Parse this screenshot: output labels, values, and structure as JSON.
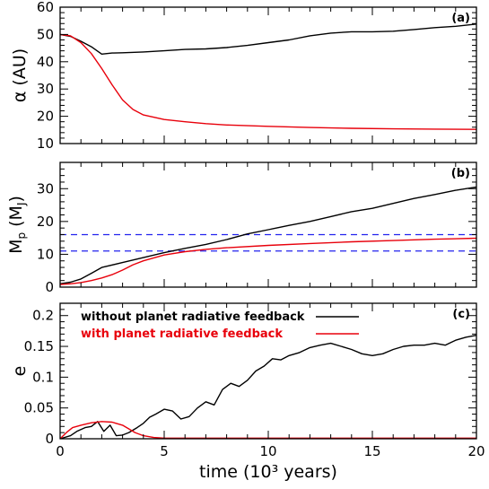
{
  "chart_data": {
    "type": "line",
    "x_label": "time (10³ years)",
    "x_range": [
      0,
      20
    ],
    "x_ticks": [
      0,
      5,
      10,
      15,
      20
    ],
    "legend_placement": "top-left of panel (c)",
    "legend": [
      {
        "label": "without planet radiative feedback",
        "color": "#000000"
      },
      {
        "label": "with planet radiative feedback",
        "color": "#e8000b"
      }
    ],
    "panels": [
      {
        "tag": "(a)",
        "y_label": "α (AU)",
        "y_range": [
          10,
          60
        ],
        "y_ticks": [
          10,
          20,
          30,
          40,
          50,
          60
        ],
        "series": [
          {
            "name": "without planet radiative feedback",
            "color": "#000000",
            "x": [
              0,
              0.5,
              1,
              1.5,
              2,
              2.5,
              3,
              4,
              5,
              6,
              7,
              8,
              9,
              10,
              11,
              12,
              13,
              14,
              15,
              16,
              17,
              18,
              19,
              20
            ],
            "y": [
              50,
              49.3,
              47.5,
              45.5,
              42.8,
              43.2,
              43.3,
              43.6,
              44.0,
              44.5,
              44.7,
              45.2,
              46.0,
              47.0,
              48.0,
              49.5,
              50.5,
              51.0,
              51.0,
              51.2,
              51.8,
              52.5,
              53.0,
              53.8
            ]
          },
          {
            "name": "with planet radiative feedback",
            "color": "#e8000b",
            "x": [
              0,
              0.5,
              1,
              1.5,
              2,
              2.5,
              3,
              3.5,
              4,
              5,
              6,
              7,
              8,
              10,
              12,
              14,
              16,
              18,
              20
            ],
            "y": [
              50,
              49.5,
              47.0,
              43.0,
              37.5,
              31.5,
              26.0,
              22.5,
              20.5,
              18.8,
              18.0,
              17.3,
              16.8,
              16.3,
              15.9,
              15.6,
              15.4,
              15.3,
              15.2
            ]
          }
        ]
      },
      {
        "tag": "(b)",
        "y_label": "Mp (MJ)",
        "y_range": [
          0,
          38
        ],
        "y_ticks": [
          0,
          10,
          20,
          30
        ],
        "hlines": [
          {
            "y": 16,
            "color": "#2222ee"
          },
          {
            "y": 11,
            "color": "#2222ee"
          }
        ],
        "series": [
          {
            "name": "without planet radiative feedback",
            "color": "#000000",
            "x": [
              0,
              0.5,
              1,
              1.5,
              2,
              3,
              4,
              5,
              6,
              7,
              8,
              9,
              10,
              11,
              12,
              13,
              14,
              15,
              16,
              17,
              18,
              19,
              20
            ],
            "y": [
              1,
              1.5,
              2.5,
              4.2,
              6.0,
              7.5,
              9.0,
              10.5,
              11.8,
              13.0,
              14.5,
              16.2,
              17.5,
              18.8,
              20.0,
              21.5,
              23.0,
              24.0,
              25.5,
              27.0,
              28.2,
              29.5,
              30.5
            ]
          },
          {
            "name": "with planet radiative feedback",
            "color": "#e8000b",
            "x": [
              0,
              0.5,
              1,
              1.5,
              2,
              2.5,
              3,
              3.5,
              4,
              5,
              6,
              7,
              8,
              10,
              12,
              14,
              16,
              18,
              20
            ],
            "y": [
              0.8,
              1.0,
              1.4,
              2.0,
              2.8,
              3.8,
              5.2,
              6.8,
              8.0,
              9.8,
              10.8,
              11.5,
              12.0,
              12.7,
              13.3,
              13.8,
              14.2,
              14.6,
              14.9
            ]
          }
        ]
      },
      {
        "tag": "(c)",
        "y_label": "e",
        "y_range": [
          0,
          0.22
        ],
        "y_ticks": [
          0,
          0.05,
          0.1,
          0.15,
          0.2
        ],
        "series": [
          {
            "name": "without planet radiative feedback",
            "color": "#000000",
            "x": [
              0,
              0.5,
              0.8,
              1.2,
              1.5,
              1.8,
              2.1,
              2.4,
              2.7,
              3.0,
              3.3,
              3.7,
              4.0,
              4.3,
              4.6,
              5.0,
              5.4,
              5.8,
              6.2,
              6.6,
              7.0,
              7.4,
              7.8,
              8.2,
              8.6,
              9.0,
              9.4,
              9.8,
              10.2,
              10.6,
              11.0,
              11.5,
              12.0,
              12.5,
              13.0,
              13.5,
              14.0,
              14.5,
              15.0,
              15.5,
              16.0,
              16.5,
              17.0,
              17.5,
              18.0,
              18.5,
              19.0,
              19.5,
              20.0
            ],
            "y": [
              0,
              0.005,
              0.012,
              0.018,
              0.02,
              0.028,
              0.012,
              0.022,
              0.005,
              0.006,
              0.01,
              0.018,
              0.025,
              0.035,
              0.04,
              0.048,
              0.045,
              0.032,
              0.036,
              0.05,
              0.06,
              0.055,
              0.08,
              0.09,
              0.085,
              0.095,
              0.11,
              0.118,
              0.13,
              0.128,
              0.135,
              0.14,
              0.148,
              0.152,
              0.155,
              0.15,
              0.145,
              0.138,
              0.135,
              0.138,
              0.145,
              0.15,
              0.152,
              0.152,
              0.155,
              0.152,
              0.16,
              0.165,
              0.168
            ]
          },
          {
            "name": "with planet radiative feedback",
            "color": "#e8000b",
            "x": [
              0,
              0.3,
              0.6,
              1.0,
              1.5,
              2.0,
              2.5,
              3.0,
              3.3,
              3.6,
              4.0,
              4.5,
              5,
              6,
              8,
              10,
              12,
              14,
              16,
              18,
              20
            ],
            "y": [
              0,
              0.01,
              0.018,
              0.022,
              0.026,
              0.028,
              0.027,
              0.022,
              0.016,
              0.01,
              0.005,
              0.002,
              0.001,
              0.001,
              0.001,
              0.001,
              0.001,
              0.001,
              0.001,
              0.001,
              0.001
            ]
          }
        ]
      }
    ]
  }
}
